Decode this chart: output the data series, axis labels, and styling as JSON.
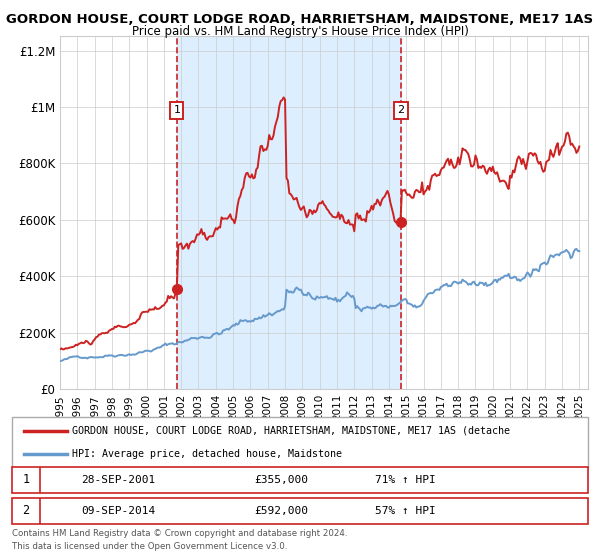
{
  "title": "GORDON HOUSE, COURT LODGE ROAD, HARRIETSHAM, MAIDSTONE, ME17 1AS",
  "subtitle": "Price paid vs. HM Land Registry's House Price Index (HPI)",
  "hpi_label": "HPI: Average price, detached house, Maidstone",
  "property_label": "GORDON HOUSE, COURT LODGE ROAD, HARRIETSHAM, MAIDSTONE, ME17 1AS (detache",
  "sale1_date": "28-SEP-2001",
  "sale1_price": 355000,
  "sale1_pct": "71% ↑ HPI",
  "sale1_x": 2001.75,
  "sale2_date": "09-SEP-2014",
  "sale2_price": 592000,
  "sale2_pct": "57% ↑ HPI",
  "sale2_x": 2014.69,
  "vline1_x": 2001.75,
  "vline2_x": 2014.69,
  "xmin": 1995,
  "xmax": 2025.5,
  "ymin": 0,
  "ymax": 1250000,
  "hpi_color": "#6699cc",
  "property_color": "#cc2222",
  "shade_color": "#ddeeff",
  "yticks": [
    0,
    200000,
    400000,
    600000,
    800000,
    1000000,
    1200000
  ],
  "ytick_labels": [
    "£0",
    "£200K",
    "£400K",
    "£600K",
    "£800K",
    "£1M",
    "£1.2M"
  ],
  "footer1": "Contains HM Land Registry data © Crown copyright and database right 2024.",
  "footer2": "This data is licensed under the Open Government Licence v3.0."
}
